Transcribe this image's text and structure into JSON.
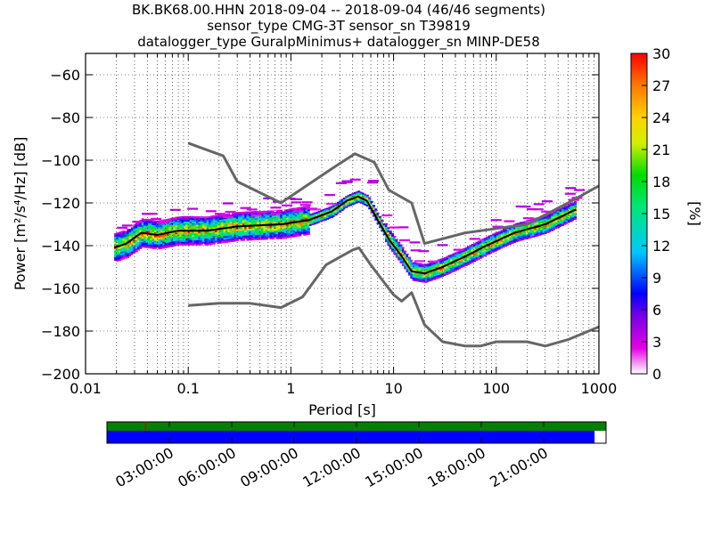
{
  "title_lines": [
    "BK.BK68.00.HHN   2018-09-04 -- 2018-09-04  (46/46 segments)",
    "sensor_type CMG-3T sensor_sn T39819",
    "datalogger_type GuralpMinimus+ datalogger_sn MINP-DE58"
  ],
  "colorbar": {
    "label": "[%]",
    "ticks": [
      "0",
      "3",
      "6",
      "9",
      "12",
      "15",
      "18",
      "21",
      "24",
      "27",
      "30"
    ],
    "range": [
      0,
      30
    ]
  },
  "colors": {
    "model_curve": "#666666",
    "mode_line": "#000000",
    "availability_top": "#008000",
    "availability_bottom": "#0000ff"
  },
  "timeline": {
    "tick_labels": [
      "03:00:00",
      "06:00:00",
      "09:00:00",
      "12:00:00",
      "15:00:00",
      "18:00:00",
      "21:00:00"
    ],
    "coverage_fraction": 0.977
  },
  "chart_data": {
    "type": "heatmap",
    "title": "BK.BK68.00.HHN   2018-09-04 -- 2018-09-04  (46/46 segments)",
    "xlabel": "Period [s]",
    "ylabel": "Power [m²/s⁴/Hz] [dB]",
    "xscale": "log",
    "xlim": [
      0.01,
      1000
    ],
    "ylim": [
      -200,
      -50
    ],
    "x_tick_labels": [
      "0.01",
      "0.1",
      "1",
      "10",
      "100",
      "1000"
    ],
    "y_tick_labels": [
      "−60",
      "−80",
      "−100",
      "−120",
      "−140",
      "−160",
      "−180",
      "−200"
    ],
    "grid": true,
    "series": [
      {
        "name": "",
        "x": [
          0.1,
          0.22,
          0.3,
          0.8,
          2.5,
          4.2,
          6.5,
          9,
          15,
          20,
          50,
          100,
          200,
          500,
          1000
        ],
        "values": [
          -92,
          -98,
          -110,
          -120,
          -104,
          -97,
          -101,
          -114,
          -120,
          -139,
          -134,
          -132,
          -130,
          -120,
          -112
        ]
      },
      {
        "name": "",
        "x": [
          0.1,
          0.2,
          0.4,
          0.8,
          1.3,
          2.2,
          4,
          4.6,
          6,
          10,
          12,
          15,
          20,
          30,
          50,
          70,
          100,
          200,
          300,
          500,
          1000
        ],
        "values": [
          -168,
          -167,
          -167,
          -169,
          -164,
          -149,
          -142,
          -141,
          -149,
          -163,
          -166,
          -162,
          -177,
          -185,
          -187,
          -187,
          -185,
          -185,
          -187,
          -184,
          -178
        ]
      },
      {
        "name": "",
        "x": [
          0.019,
          0.025,
          0.035,
          0.05,
          0.08,
          0.15,
          0.3,
          0.8,
          1.5,
          2.5,
          3.5,
          4.5,
          5.5,
          7,
          9,
          12,
          15,
          20,
          30,
          50,
          80,
          150,
          300,
          600
        ],
        "values": [
          -141,
          -139,
          -134,
          -135,
          -133,
          -133,
          -131,
          -130,
          -128,
          -124,
          -119,
          -117,
          -119,
          -128,
          -137,
          -145,
          -152,
          -153,
          -150,
          -145,
          -140,
          -134,
          -130,
          -123
        ]
      }
    ]
  }
}
